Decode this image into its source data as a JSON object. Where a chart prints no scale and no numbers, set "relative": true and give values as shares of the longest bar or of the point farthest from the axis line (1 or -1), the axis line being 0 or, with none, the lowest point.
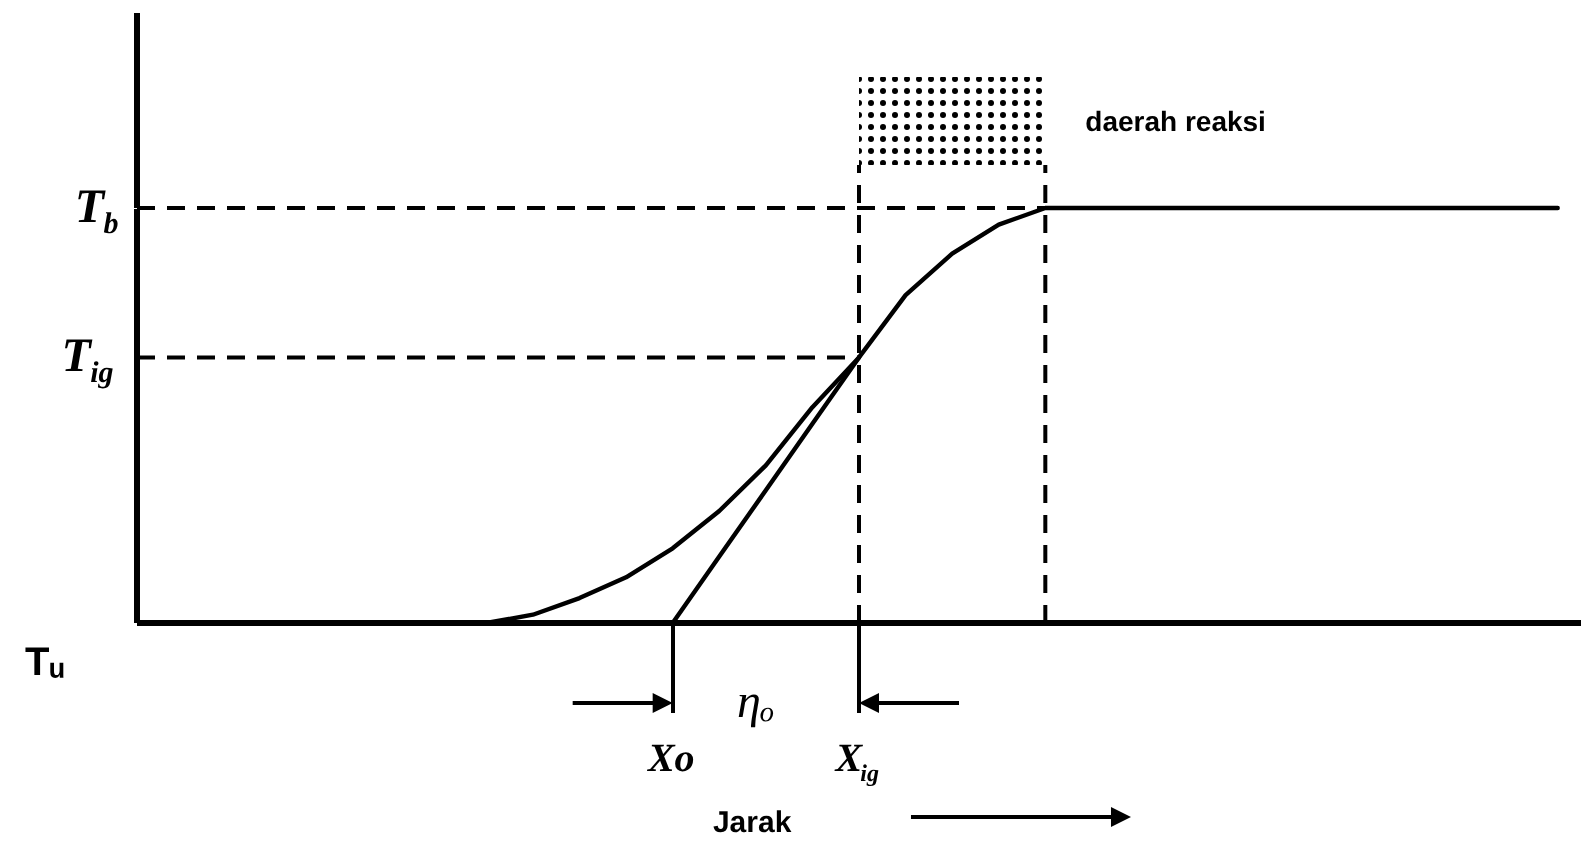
{
  "chart_data": {
    "type": "line",
    "relative": true,
    "xlabel": "Jarak",
    "categories": [
      null,
      null,
      null,
      null,
      null,
      null,
      null,
      null,
      null,
      null,
      null,
      "Xo",
      null,
      null,
      null,
      "X$_{ig}$",
      null,
      null,
      null,
      null,
      null,
      null,
      null,
      null,
      null,
      null,
      null,
      null,
      null,
      null,
      null
    ],
    "series": [
      {
        "color": "#000000",
        "values": [
          0,
          0,
          0,
          0,
          0,
          0,
          0,
          0,
          0.02,
          0.06,
          0.11,
          0.18,
          0.27,
          0.38,
          0.52,
          0.64,
          0.79,
          0.89,
          0.96,
          1,
          1,
          1,
          1,
          1,
          1,
          1,
          1,
          1,
          1,
          1,
          1
        ]
      },
      {
        "type": "line",
        "color": "#000000",
        "values": [
          null,
          null,
          null,
          null,
          null,
          null,
          null,
          null,
          null,
          null,
          null,
          0,
          0.16,
          0.32,
          0.48,
          0.64,
          null,
          null,
          null,
          null,
          null,
          null,
          null,
          null,
          null,
          null,
          null,
          null,
          null,
          null,
          null
        ]
      }
    ],
    "annotations": [
      "T$_{b}$",
      "T$_{ig}$",
      "Tᵤ",
      "ηₒ",
      "daerah reaksi"
    ],
    "line_style": "solid"
  }
}
